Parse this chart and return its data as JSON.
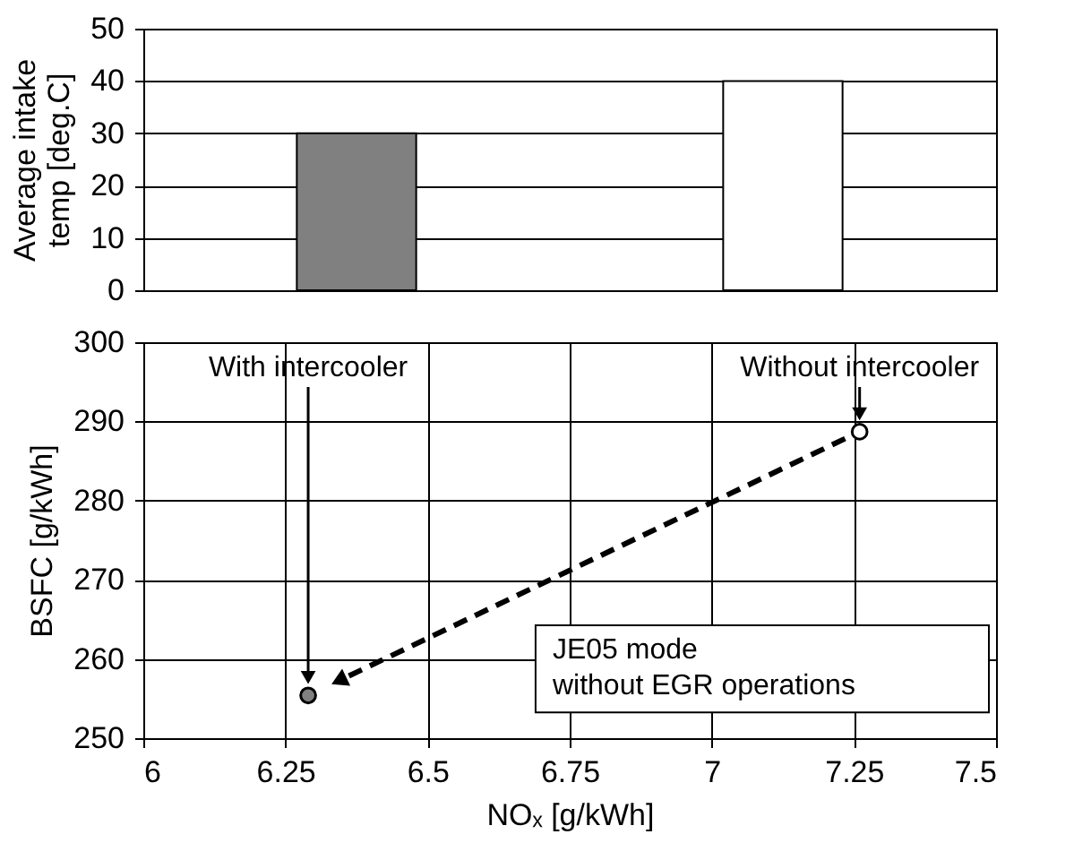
{
  "chart_data": [
    {
      "type": "bar",
      "categories": [
        null,
        null
      ],
      "values": [
        30,
        40
      ],
      "colors": [
        "#808080",
        "#ffffff"
      ],
      "ylabel": "Average intake\ntemp [deg.C]",
      "ylim": [
        0,
        50
      ],
      "yticks": [
        0,
        10,
        20,
        30,
        40,
        50
      ],
      "grid": "y",
      "tick_labels": "y"
    },
    {
      "type": "scatter",
      "x": [
        6.29,
        7.26
      ],
      "values": [
        255.4,
        288.7
      ],
      "colors": [
        "#000000",
        "#ffffff"
      ],
      "marker": "circle",
      "xlabel": "NOₓ [g/kWh]",
      "ylabel": "BSFC [g/kWh]",
      "xlim": [
        6,
        7.5
      ],
      "xticks": [
        6,
        6.25,
        6.5,
        6.75,
        7,
        7.25,
        7.5
      ],
      "ylim": [
        250,
        300
      ],
      "yticks": [
        250,
        260,
        270,
        280,
        290,
        300
      ],
      "grid": true,
      "annotations": [
        "With intercooler",
        {
          "text": "Without intercooler",
          "x": 7.26,
          "y": 288.7
        },
        "JE05 mode\nwithout EGR operations"
      ]
    }
  ]
}
